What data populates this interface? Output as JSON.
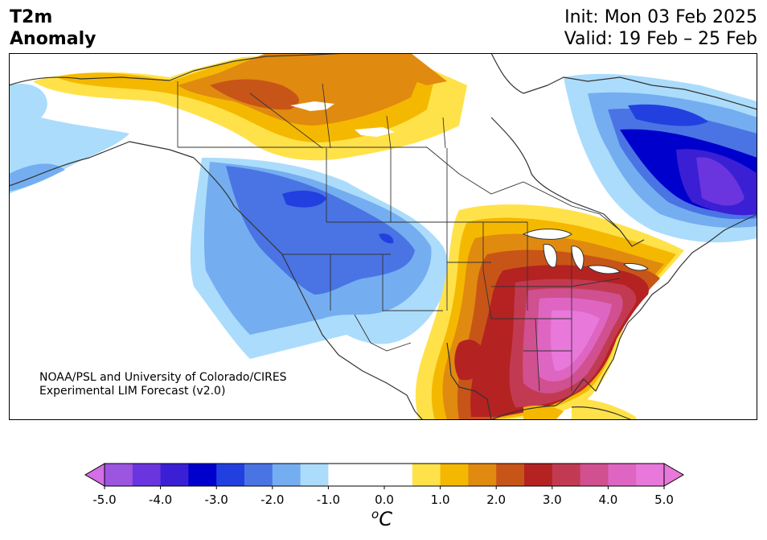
{
  "title": {
    "line1": "T2m",
    "line2": "Anomaly"
  },
  "init": "Init: Mon 03 Feb 2025",
  "valid": "Valid: 19 Feb – 25 Feb",
  "credit": {
    "line1": "NOAA/PSL and University of Colorado/CIRES",
    "line2": "Experimental LIM Forecast (v2.0)"
  },
  "colorbar": {
    "ticks": [
      "-5.0",
      "-4.0",
      "-3.0",
      "-2.0",
      "-1.0",
      "0.0",
      "1.0",
      "2.0",
      "3.0",
      "4.0",
      "5.0"
    ],
    "unit_sup": "o",
    "unit": "C",
    "levels": [
      -5.0,
      -4.5,
      -4.0,
      -3.5,
      -3.0,
      -2.5,
      -2.0,
      -1.5,
      -1.0,
      -0.5,
      0.5,
      1.0,
      1.5,
      2.0,
      2.5,
      3.0,
      3.5,
      4.0,
      4.5,
      5.0
    ],
    "colors": [
      "#9b55e0",
      "#6a35de",
      "#3b1fd4",
      "#0000cc",
      "#2240e0",
      "#4a74e4",
      "#74aef0",
      "#acdcfc",
      "#ffffff",
      "#ffffff",
      "#ffe24a",
      "#f5b800",
      "#e08a10",
      "#c85518",
      "#b42222",
      "#c23a52",
      "#d05090",
      "#de66c2",
      "#e878da"
    ],
    "under_color": "#d36ee8",
    "over_color": "#e878da"
  }
}
